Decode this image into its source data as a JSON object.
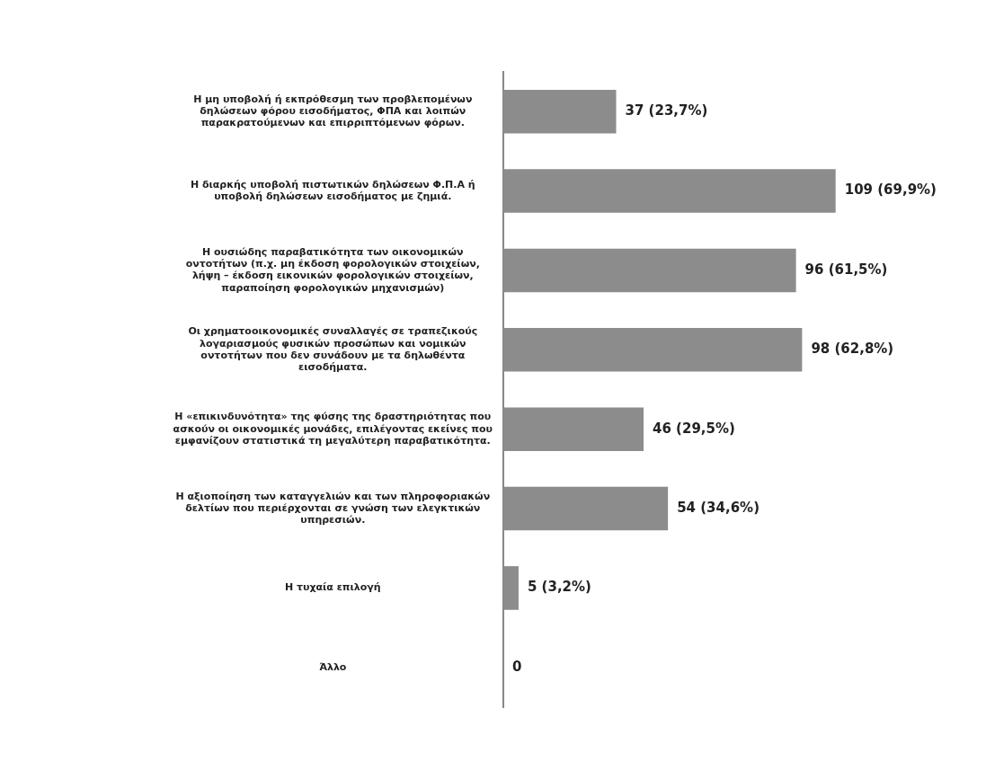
{
  "chart_data": {
    "type": "bar",
    "orientation": "horizontal",
    "tick_labels": "y",
    "legend": false,
    "categories": [
      "Η μη υποβολή ή εκπρόθεσμη των προβλεπομένων δηλώσεων φόρου εισοδήματος, ΦΠΑ και λοιπών παρακρατούμενων και επιρριπτόμενων φόρων.",
      "Η διαρκής υποβολή πιστωτικών δηλώσεων Φ.Π.Α ή υποβολή δηλώσεων εισοδήματος με ζημιά.",
      "Η ουσιώδης παραβατικότητα των οικονομικών οντοτήτων (π.χ. μη έκδοση φορολογικών στοιχείων, λήψη – έκδοση εικονικών φορολογικών στοιχείων, παραποίηση φορολογικών μηχανισμών)",
      "Οι χρηματοοικονομικές συναλλαγές σε τραπεζικούς λογαριασμούς φυσικών προσώπων και νομικών οντοτήτων που δεν συνάδουν με τα δηλωθέντα εισοδήματα.",
      "Η «επικινδυνότητα» της φύσης της δραστηριότητας που ασκούν οι οικονομικές μονάδες, επιλέγοντας εκείνες που εμφανίζουν στατιστικά τη μεγαλύτερη παραβατικότητα.",
      "Η αξιοποίηση των καταγγελιών και των πληροφοριακών δελτίων που περιέρχονται σε γνώση των ελεγκτικών υπηρεσιών.",
      "Η τυχαία επιλογή",
      "Άλλο"
    ],
    "values": [
      37,
      109,
      96,
      98,
      46,
      54,
      5,
      0
    ],
    "value_labels": [
      "37 (23,7%)",
      "109 (69,9%)",
      "96 (61,5%)",
      "98 (62,8%)",
      "46 (29,5%)",
      "54 (34,6%)",
      "5 (3,2%)",
      "0"
    ],
    "color": "#8c8c8c"
  }
}
